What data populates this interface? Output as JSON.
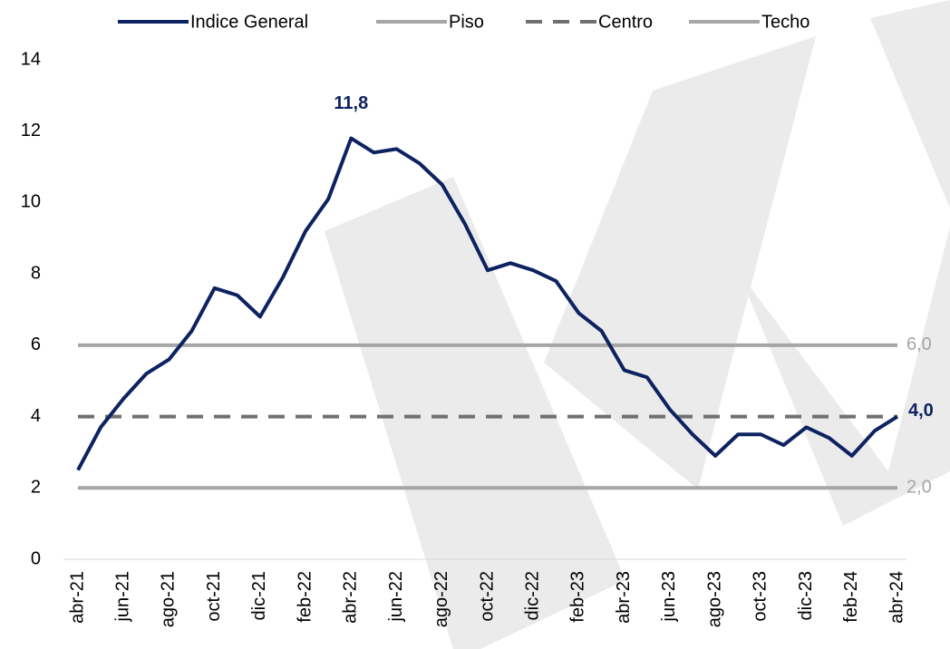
{
  "chart_data": {
    "type": "line",
    "categories": [
      "abr-21",
      null,
      "jun-21",
      null,
      "ago-21",
      null,
      "oct-21",
      null,
      "dic-21",
      null,
      "feb-22",
      null,
      "abr-22",
      null,
      "jun-22",
      null,
      "ago-22",
      null,
      "oct-22",
      null,
      "dic-22",
      null,
      "feb-23",
      null,
      "abr-23",
      null,
      "jun-23",
      null,
      "ago-23",
      null,
      "oct-23",
      null,
      "dic-23",
      null,
      "feb-24",
      null,
      "abr-24"
    ],
    "series": [
      {
        "name": "Indice General",
        "color": "#0d2260",
        "width": 4,
        "dash": false,
        "values": [
          2.5,
          3.7,
          4.5,
          5.2,
          5.6,
          6.4,
          7.6,
          7.4,
          6.8,
          7.9,
          9.2,
          10.1,
          11.8,
          11.4,
          11.5,
          11.1,
          10.5,
          9.4,
          8.1,
          8.3,
          8.1,
          7.8,
          6.9,
          6.4,
          5.3,
          5.1,
          4.2,
          3.5,
          2.9,
          3.5,
          3.5,
          3.2,
          3.7,
          3.4,
          2.9,
          3.6,
          4.0
        ],
        "value_labels": [
          null,
          null,
          null,
          null,
          null,
          null,
          null,
          null,
          null,
          null,
          null,
          null,
          "11,8",
          null,
          null,
          null,
          null,
          null,
          null,
          null,
          null,
          null,
          null,
          null,
          null,
          null,
          null,
          null,
          null,
          null,
          null,
          null,
          null,
          null,
          null,
          null,
          "4,0"
        ]
      },
      {
        "name": "Piso",
        "color": "#a6a6a6",
        "width": 4,
        "dash": false,
        "values": [
          2,
          2,
          2,
          2,
          2,
          2,
          2,
          2,
          2,
          2,
          2,
          2,
          2,
          2,
          2,
          2,
          2,
          2,
          2,
          2,
          2,
          2,
          2,
          2,
          2,
          2,
          2,
          2,
          2,
          2,
          2,
          2,
          2,
          2,
          2,
          2,
          2
        ],
        "value_labels": [
          null,
          null,
          null,
          null,
          null,
          null,
          null,
          null,
          null,
          null,
          null,
          null,
          null,
          null,
          null,
          null,
          null,
          null,
          null,
          null,
          null,
          null,
          null,
          null,
          null,
          null,
          null,
          null,
          null,
          null,
          null,
          null,
          null,
          null,
          null,
          null,
          "2,0"
        ]
      },
      {
        "name": "Centro",
        "color": "#707070",
        "width": 4,
        "dash": true,
        "values": [
          4,
          4,
          4,
          4,
          4,
          4,
          4,
          4,
          4,
          4,
          4,
          4,
          4,
          4,
          4,
          4,
          4,
          4,
          4,
          4,
          4,
          4,
          4,
          4,
          4,
          4,
          4,
          4,
          4,
          4,
          4,
          4,
          4,
          4,
          4,
          4,
          4
        ]
      },
      {
        "name": "Techo",
        "color": "#a6a6a6",
        "width": 4,
        "dash": false,
        "values": [
          6,
          6,
          6,
          6,
          6,
          6,
          6,
          6,
          6,
          6,
          6,
          6,
          6,
          6,
          6,
          6,
          6,
          6,
          6,
          6,
          6,
          6,
          6,
          6,
          6,
          6,
          6,
          6,
          6,
          6,
          6,
          6,
          6,
          6,
          6,
          6,
          6
        ],
        "value_labels": [
          null,
          null,
          null,
          null,
          null,
          null,
          null,
          null,
          null,
          null,
          null,
          null,
          null,
          null,
          null,
          null,
          null,
          null,
          null,
          null,
          null,
          null,
          null,
          null,
          null,
          null,
          null,
          null,
          null,
          null,
          null,
          null,
          null,
          null,
          null,
          null,
          "6,0"
        ]
      }
    ],
    "ylim": [
      0,
      14
    ],
    "yticks": [
      0,
      2,
      4,
      6,
      8,
      10,
      12,
      14
    ],
    "grid": false,
    "legend": "top"
  }
}
